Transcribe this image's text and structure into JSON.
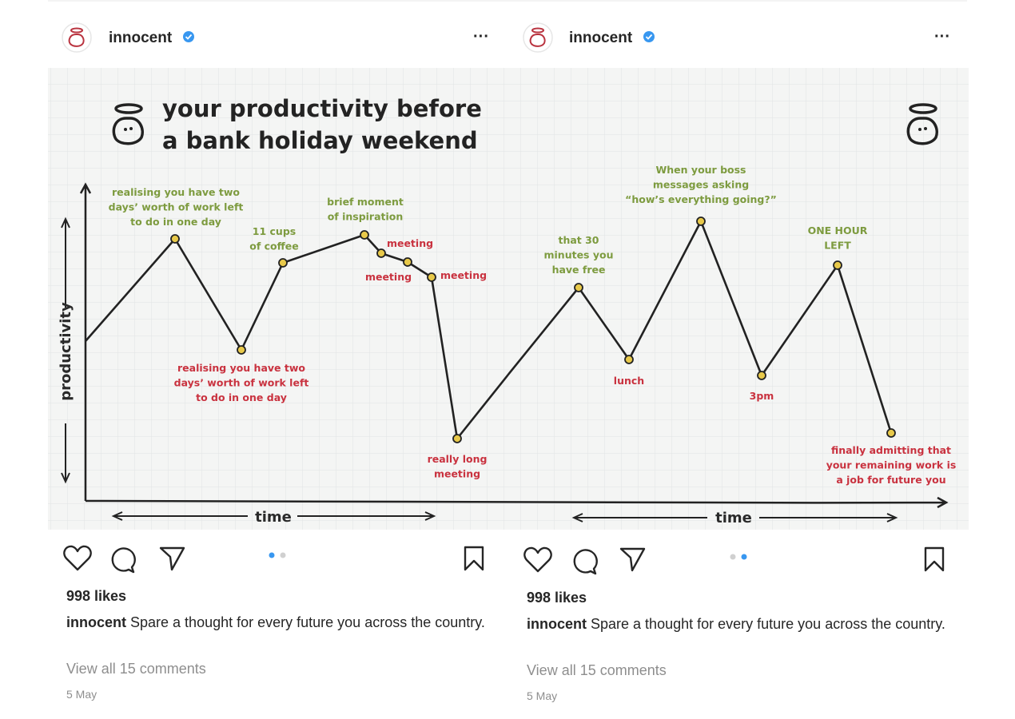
{
  "posts": [
    {
      "header": {
        "username": "innocent",
        "menu": "···"
      },
      "image": {
        "title": [
          "your productivity before",
          "a bank holiday weekend"
        ],
        "y_axis_label": "productivity",
        "x_axis_label": "time",
        "annotations": [
          [
            "realising you have two",
            "days’ worth of work left",
            "to do in one day"
          ],
          [
            "11 cups",
            "of coffee"
          ],
          [
            "brief moment",
            "of inspiration"
          ],
          [
            "meeting"
          ],
          [
            "meeting"
          ],
          [
            "meeting"
          ],
          [
            "realising you have two",
            "days’ worth of work left",
            "to do in one day"
          ],
          [
            "really long",
            "meeting"
          ]
        ]
      },
      "likes": "998 likes",
      "caption": {
        "username": "innocent",
        "text": "Spare a thought for every future you across the country."
      },
      "comments": "View all 15 comments",
      "date": "5 May"
    },
    {
      "header": {
        "username": "innocent",
        "menu": "···"
      },
      "image": {
        "x_axis_label": "time",
        "annotations": [
          [
            "that 30",
            "minutes you",
            "have free"
          ],
          [
            "When your boss",
            "messages asking",
            "“how’s everything going?”"
          ],
          [
            "ONE HOUR",
            "LEFT"
          ],
          [
            "lunch"
          ],
          [
            "3pm"
          ],
          [
            "finally admitting that",
            "your remaining work is",
            "a job for future you"
          ]
        ]
      },
      "likes": "998 likes",
      "caption": {
        "username": "innocent",
        "text": "Spare a thought for every future you across the country."
      },
      "comments": "View all 15 comments",
      "date": "5 May"
    }
  ]
}
